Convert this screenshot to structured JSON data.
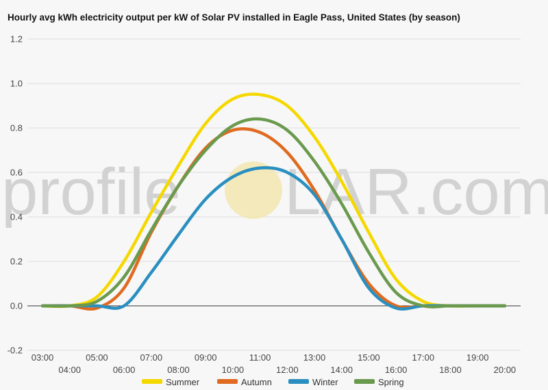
{
  "chart_data": {
    "type": "line",
    "title": "Hourly avg kWh electricity output per kW of Solar PV installed in Eagle Pass, United States (by season)",
    "xlabel": "",
    "ylabel": "",
    "x": [
      "03:00",
      "04:00",
      "05:00",
      "06:00",
      "07:00",
      "08:00",
      "09:00",
      "10:00",
      "11:00",
      "12:00",
      "13:00",
      "14:00",
      "15:00",
      "16:00",
      "17:00",
      "18:00",
      "19:00",
      "20:00"
    ],
    "y_ticks": [
      "1.2",
      "1.0",
      "0.8",
      "0.6",
      "0.4",
      "0.2",
      "0.0",
      "-0.2"
    ],
    "ylim": [
      -0.2,
      1.2
    ],
    "grid": true,
    "legend_position": "bottom",
    "series": [
      {
        "name": "Summer",
        "color": "#f5d800",
        "values": [
          0.0,
          0.0,
          0.04,
          0.2,
          0.42,
          0.63,
          0.82,
          0.93,
          0.95,
          0.9,
          0.76,
          0.56,
          0.33,
          0.12,
          0.02,
          0.0,
          0.0,
          0.0
        ]
      },
      {
        "name": "Autumn",
        "color": "#e06a1f",
        "values": [
          0.0,
          0.0,
          -0.01,
          0.08,
          0.33,
          0.54,
          0.71,
          0.79,
          0.78,
          0.69,
          0.52,
          0.3,
          0.1,
          0.0,
          0.0,
          0.0,
          0.0,
          0.0
        ]
      },
      {
        "name": "Winter",
        "color": "#2a8fc0",
        "values": [
          0.0,
          0.0,
          0.0,
          0.0,
          0.15,
          0.32,
          0.48,
          0.58,
          0.62,
          0.6,
          0.5,
          0.3,
          0.08,
          -0.01,
          0.0,
          0.0,
          0.0,
          0.0
        ]
      },
      {
        "name": "Spring",
        "color": "#6a9a4e",
        "values": [
          0.0,
          0.0,
          0.02,
          0.13,
          0.34,
          0.54,
          0.7,
          0.81,
          0.84,
          0.79,
          0.65,
          0.46,
          0.24,
          0.06,
          0.0,
          0.0,
          0.0,
          0.0
        ]
      }
    ]
  },
  "watermark": {
    "before": "profile",
    "after": "LAR.com"
  }
}
